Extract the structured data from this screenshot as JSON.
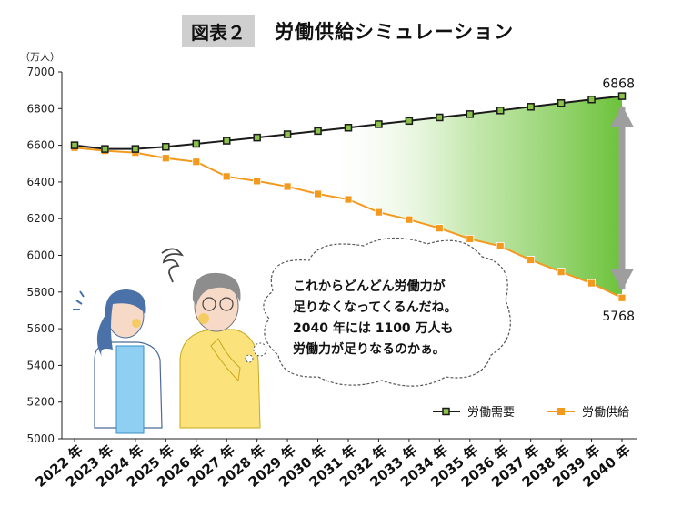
{
  "header": {
    "figure_label": "図表２",
    "title": "労働供給シミュレーション"
  },
  "unit_label": "（万人）",
  "speech_bubble": {
    "lines": [
      "これからどんどん労働力が",
      "足りなくなってくるんだね。",
      "2040 年には 1100 万人も",
      "労働力が足りなるのかぁ。"
    ]
  },
  "colors": {
    "demand": "#1a1a1a",
    "demand_marker": "#8bc34a",
    "supply": "#f39a1e",
    "gap_fill": "#6cc23a",
    "arrow": "#9e9e9e"
  },
  "chart_data": {
    "type": "line",
    "categories": [
      "2022 年",
      "2023 年",
      "2024 年",
      "2025 年",
      "2026 年",
      "2027 年",
      "2028 年",
      "2029 年",
      "2030 年",
      "2031 年",
      "2032 年",
      "2033 年",
      "2034 年",
      "2035 年",
      "2036 年",
      "2037 年",
      "2038 年",
      "2039 年",
      "2040 年"
    ],
    "series": [
      {
        "name": "労働需要",
        "values": [
          6600,
          6580,
          6580,
          6592,
          6608,
          6625,
          6642,
          6660,
          6678,
          6696,
          6715,
          6733,
          6752,
          6770,
          6790,
          6810,
          6830,
          6850,
          6868
        ]
      },
      {
        "name": "労働供給",
        "values": [
          6587,
          6570,
          6560,
          6530,
          6510,
          6430,
          6405,
          6375,
          6335,
          6305,
          6235,
          6195,
          6148,
          6090,
          6050,
          5975,
          5910,
          5848,
          5768
        ]
      }
    ],
    "ylim": [
      5000,
      7000
    ],
    "yticks": [
      5000,
      5200,
      5400,
      5600,
      5800,
      6000,
      6200,
      6400,
      6600,
      6800,
      7000
    ],
    "end_labels": {
      "demand": "6868",
      "supply": "5768"
    },
    "grid": false,
    "legend_position": "bottom-right"
  }
}
